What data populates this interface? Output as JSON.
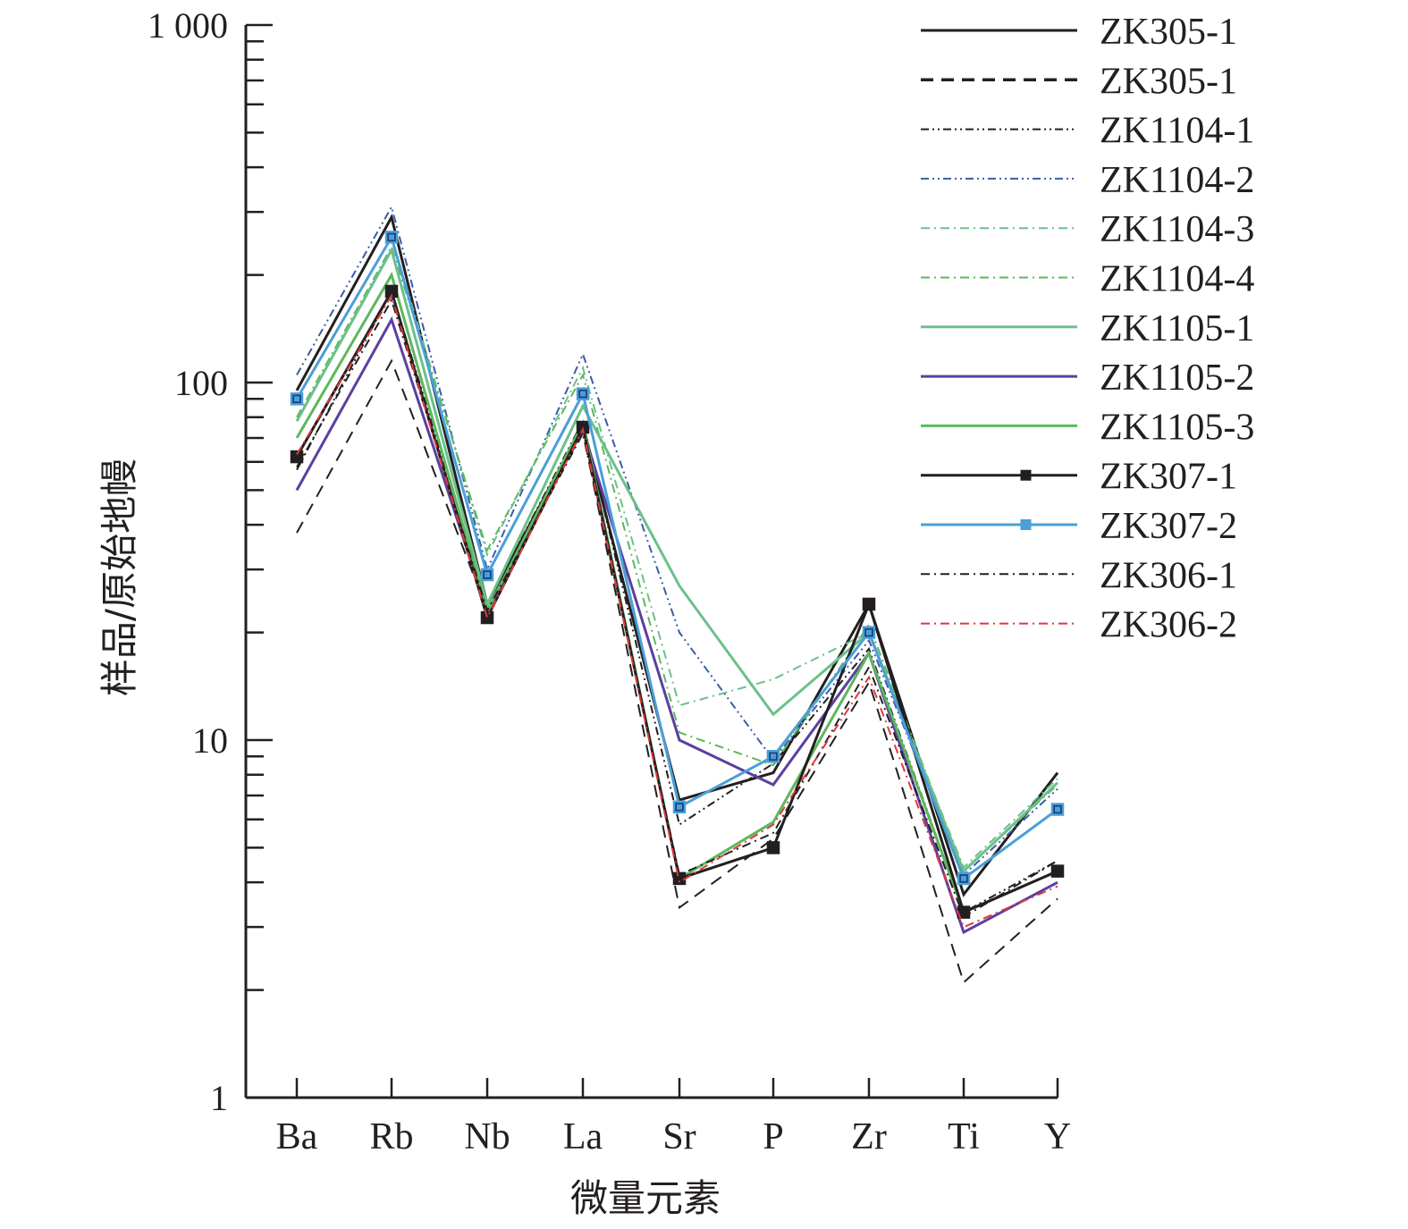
{
  "chart_data": {
    "type": "line",
    "xlabel": "微量元素",
    "ylabel": "样品/原始地幔",
    "yscale": "log",
    "ylim": [
      1,
      1000
    ],
    "y_tick_labels": [
      "1",
      "10",
      "100",
      "1 000"
    ],
    "categories": [
      "Ba",
      "Rb",
      "Nb",
      "La",
      "Sr",
      "P",
      "Zr",
      "Ti",
      "Y"
    ],
    "legend_position": "top-right",
    "grid": false,
    "series": [
      {
        "name": "ZK305-1",
        "color": "#231f20",
        "dash": "solid",
        "marker": "none",
        "values": [
          95,
          290,
          24,
          76,
          6.8,
          8.1,
          24,
          3.7,
          8.1
        ]
      },
      {
        "name": "ZK305-1",
        "color": "#231f20",
        "dash": "dashed",
        "marker": "none",
        "values": [
          38,
          115,
          23,
          73,
          3.4,
          5.3,
          14.5,
          2.1,
          3.6
        ]
      },
      {
        "name": "ZK1104-1",
        "color": "#231f20",
        "dash": "dashdotdot",
        "marker": "none",
        "values": [
          57,
          180,
          24,
          78,
          5.8,
          8.6,
          18,
          3.3,
          4.6
        ]
      },
      {
        "name": "ZK1104-2",
        "color": "#3c5ba8",
        "dash": "dashdotdot",
        "marker": "none",
        "values": [
          105,
          310,
          30,
          120,
          20,
          8.8,
          19,
          4.2,
          7.3
        ]
      },
      {
        "name": "ZK1104-3",
        "color": "#6cc08b",
        "dash": "dashdot",
        "marker": "none",
        "values": [
          90,
          255,
          33,
          110,
          12.5,
          14.8,
          20,
          4.4,
          7.8
        ]
      },
      {
        "name": "ZK1104-4",
        "color": "#5cb85c",
        "dash": "dashdot",
        "marker": "none",
        "values": [
          80,
          240,
          34,
          105,
          10.5,
          8.5,
          21,
          4.3,
          7.5
        ]
      },
      {
        "name": "ZK1105-1",
        "color": "#6cc08b",
        "dash": "solid",
        "marker": "none",
        "values": [
          78,
          235,
          24,
          86,
          27,
          11.8,
          20,
          4.3,
          7.6
        ]
      },
      {
        "name": "ZK1105-2",
        "color": "#5b3fa0",
        "dash": "solid",
        "marker": "none",
        "values": [
          50,
          150,
          23,
          74,
          10,
          7.5,
          17.5,
          2.9,
          4.0
        ]
      },
      {
        "name": "ZK1105-3",
        "color": "#5cb85c",
        "dash": "solid",
        "marker": "none",
        "values": [
          70,
          200,
          23,
          77,
          4.1,
          5.9,
          17.5,
          3.3,
          4.3
        ]
      },
      {
        "name": "ZK307-1",
        "color": "#231f20",
        "dash": "solid",
        "marker": "square",
        "values": [
          62,
          180,
          22,
          75,
          4.1,
          5.0,
          24,
          3.3,
          4.3
        ]
      },
      {
        "name": "ZK307-2",
        "color": "#4a9fd8",
        "dash": "solid",
        "marker": "square",
        "values": [
          90,
          255,
          29,
          93,
          6.5,
          9.0,
          20,
          4.1,
          6.4
        ]
      },
      {
        "name": "ZK306-1",
        "color": "#231f20",
        "dash": "dashdot",
        "marker": "none",
        "values": [
          58,
          170,
          23,
          72,
          4.2,
          5.5,
          16,
          3.2,
          4.6
        ]
      },
      {
        "name": "ZK306-2",
        "color": "#e0393e",
        "dash": "dashdot",
        "marker": "none",
        "values": [
          63,
          175,
          22,
          74,
          4.0,
          5.8,
          15,
          3.0,
          3.9
        ]
      }
    ]
  }
}
